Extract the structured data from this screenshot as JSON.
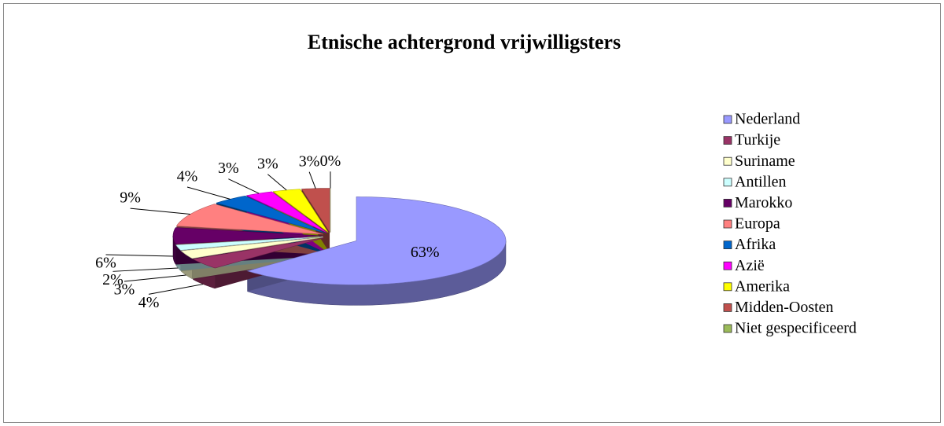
{
  "chart_data": {
    "type": "pie",
    "title": "Etnische achtergrond vrijwilligsters",
    "categories": [
      "Nederland",
      "Turkije",
      "Suriname",
      "Antillen",
      "Marokko",
      "Europa",
      "Afrika",
      "Azië",
      "Amerika",
      "Midden-Oosten",
      "Niet gespecificeerd"
    ],
    "values": [
      63,
      4,
      3,
      2,
      6,
      9,
      4,
      3,
      3,
      3,
      0
    ],
    "value_labels": [
      "63%",
      "4%",
      "3%",
      "2%",
      "6%",
      "9%",
      "4%",
      "3%",
      "3%",
      "3%",
      "0%"
    ],
    "colors": [
      "#9999ff",
      "#993366",
      "#ffffcc",
      "#ccffff",
      "#660066",
      "#ff8080",
      "#0066cc",
      "#ff00ff",
      "#ffff00",
      "#c0504d",
      "#9bbb59"
    ],
    "legend": "right"
  }
}
